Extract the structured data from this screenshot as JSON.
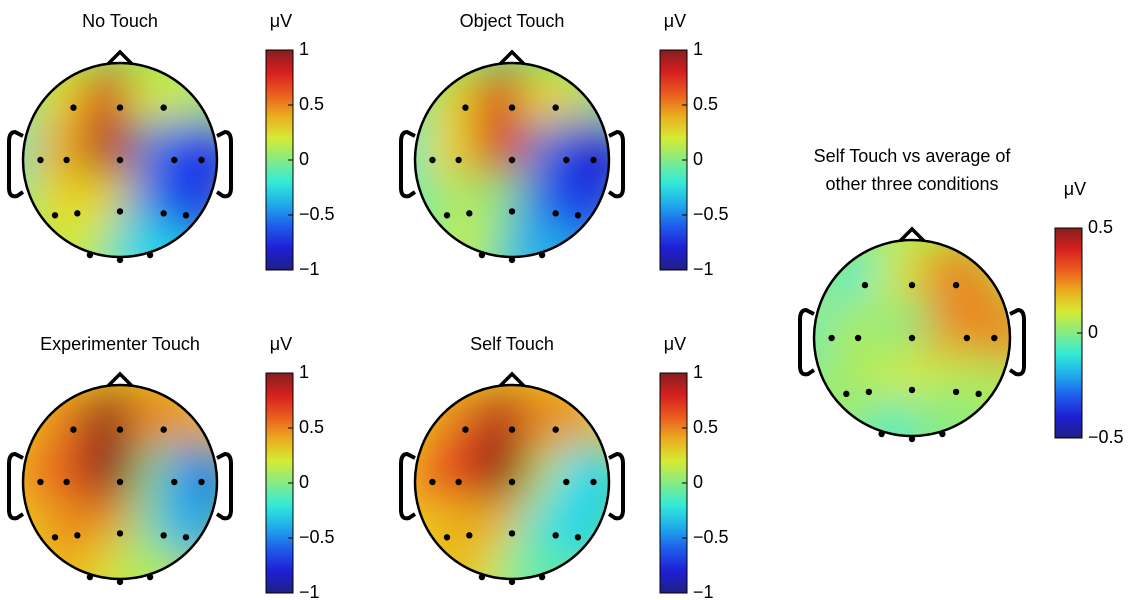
{
  "chart_data": [
    {
      "type": "topomap",
      "title": "No Touch",
      "unit": "μV",
      "clim": [
        -1,
        1
      ],
      "cticks": [
        1,
        0.5,
        0,
        {
          "value": -0.5,
          "label": "−0.5"
        },
        {
          "value": -1,
          "label": "−1"
        }
      ],
      "values": [
        0.3,
        0.8,
        0.2,
        -0.2,
        0.4,
        0.9,
        -0.5,
        -0.7,
        0.1,
        0.3,
        0.3,
        -0.5,
        -0.7,
        0.2,
        0.1,
        -0.3
      ]
    },
    {
      "type": "topomap",
      "title": "Object Touch",
      "unit": "μV",
      "clim": [
        -1,
        1
      ],
      "cticks": [
        1,
        0.5,
        0,
        {
          "value": -0.5,
          "label": "−0.5"
        },
        {
          "value": -1,
          "label": "−1"
        }
      ],
      "values": [
        0.3,
        0.8,
        0.3,
        -0.2,
        0.3,
        0.8,
        -0.5,
        -0.8,
        -0.1,
        0.1,
        0.0,
        -0.6,
        -0.7,
        0.2,
        0.0,
        -0.4
      ]
    },
    {
      "type": "topomap",
      "title": "Experimenter Touch",
      "unit": "μV",
      "clim": [
        -1,
        1
      ],
      "cticks": [
        1,
        0.5,
        0,
        {
          "value": -0.5,
          "label": "−0.5"
        },
        {
          "value": -1,
          "label": "−1"
        }
      ],
      "values": [
        0.5,
        1.0,
        0.5,
        0.4,
        0.6,
        1.0,
        0.0,
        -0.5,
        0.3,
        0.5,
        0.5,
        0.0,
        -0.4,
        0.4,
        0.3,
        0.1
      ]
    },
    {
      "type": "topomap",
      "title": "Self Touch",
      "unit": "μV",
      "clim": [
        -1,
        1
      ],
      "cticks": [
        1,
        0.5,
        0,
        {
          "value": -0.5,
          "label": "−0.5"
        },
        {
          "value": -1,
          "label": "−1"
        }
      ],
      "values": [
        0.5,
        0.9,
        0.5,
        0.4,
        0.7,
        1.0,
        0.2,
        -0.3,
        0.3,
        0.4,
        0.4,
        -0.2,
        -0.3,
        0.4,
        0.2,
        -0.1
      ]
    },
    {
      "type": "topomap",
      "title": [
        "Self  Touch vs average of",
        "other three conditions"
      ],
      "unit": "μV",
      "clim": [
        -0.5,
        0.5
      ],
      "cticks": [
        0.5,
        0,
        {
          "value": -0.5,
          "label": "−0.5"
        }
      ],
      "values": [
        -0.1,
        0.1,
        0.25,
        -0.1,
        0.05,
        0.0,
        0.25,
        0.25,
        0.0,
        0.05,
        0.1,
        0.1,
        0.05,
        0.0,
        -0.1,
        0.0
      ]
    }
  ]
}
